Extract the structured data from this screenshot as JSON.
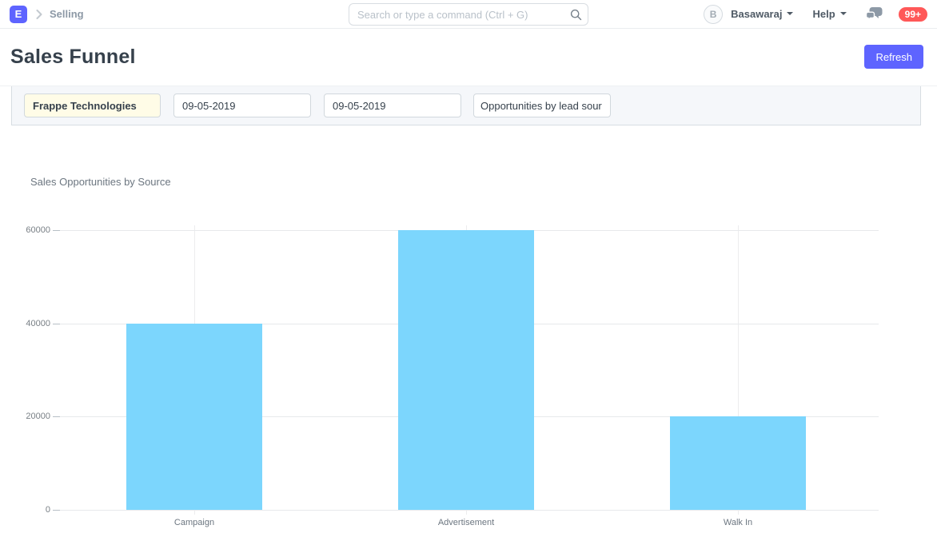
{
  "navbar": {
    "logo_letter": "E",
    "breadcrumb": "Selling",
    "search_placeholder": "Search or type a command (Ctrl + G)",
    "avatar_initial": "B",
    "user_name": "Basawaraj",
    "help_label": "Help",
    "notification_count": "99+"
  },
  "page": {
    "title": "Sales Funnel",
    "refresh_label": "Refresh"
  },
  "filters": {
    "company": "Frappe Technologies",
    "from_date": "09-05-2019",
    "to_date": "09-05-2019",
    "chart_source": "Opportunities by lead sour"
  },
  "chart_data": {
    "type": "bar",
    "title": "Sales Opportunities by Source",
    "categories": [
      "Campaign",
      "Advertisement",
      "Walk In"
    ],
    "values": [
      40000,
      60000,
      20000
    ],
    "yticks": [
      0,
      20000,
      40000,
      60000
    ],
    "ylim": [
      0,
      60000
    ],
    "xlabel": "",
    "ylabel": "",
    "grid": true,
    "legend": "none",
    "bar_color": "#7cd6fd"
  },
  "colors": {
    "accent": "#5e64ff",
    "badge_red": "#ff5858",
    "bar_blue": "#7cd6fd",
    "band_bg": "#f5f7fa"
  }
}
